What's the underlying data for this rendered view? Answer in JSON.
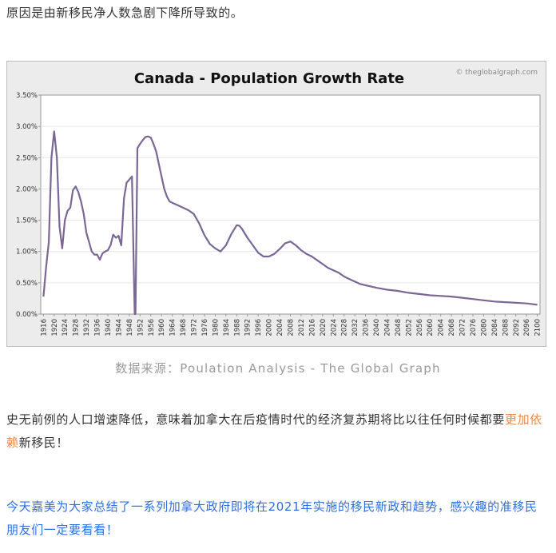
{
  "article": {
    "intro": "原因是由新移民净人数急剧下降所导致的。",
    "body_before": "史无前例的人口增速降低，意味着加拿大在后疫情时代的经济复苏期将比以往任何时候都要",
    "body_highlight": "更加依赖",
    "body_after": "新移民！",
    "cta": "今天嘉美为大家总结了一系列加拿大政府即将在2021年实施的移民新政和趋势，感兴趣的准移民朋友们一定要看看！",
    "caption": "数据来源：Poulation Analysis - The Global Graph"
  },
  "colors": {
    "line": "#7a6796",
    "highlight": "#e8894a",
    "cta": "#2e6fe0",
    "frame_bg": "#ececec",
    "plot_bg": "#ffffff"
  },
  "chart_data": {
    "type": "line",
    "title": "Canada - Population Growth Rate",
    "watermark": "© theglobalgraph.com",
    "xlabel": "",
    "ylabel": "",
    "xlim": [
      1915,
      2101
    ],
    "ylim": [
      0,
      3.5
    ],
    "y_ticks": [
      "0.00%",
      "0.50%",
      "1.00%",
      "1.50%",
      "2.00%",
      "2.50%",
      "3.00%",
      "3.50%"
    ],
    "x_ticks": [
      "1916",
      "1920",
      "1924",
      "1928",
      "1932",
      "1936",
      "1940",
      "1944",
      "1948",
      "1952",
      "1956",
      "1960",
      "1964",
      "1968",
      "1972",
      "1976",
      "1980",
      "1984",
      "1988",
      "1992",
      "1996",
      "2000",
      "2004",
      "2008",
      "2012",
      "2016",
      "2020",
      "2024",
      "2028",
      "2032",
      "2036",
      "2040",
      "2044",
      "2048",
      "2052",
      "2056",
      "2060",
      "2064",
      "2068",
      "2072",
      "2076",
      "2080",
      "2084",
      "2088",
      "2092",
      "2096",
      "2100"
    ],
    "grid": true,
    "series": [
      {
        "name": "Population Growth Rate (%)",
        "x": [
          1916,
          1917,
          1918,
          1919,
          1920,
          1921,
          1922,
          1923,
          1924,
          1925,
          1926,
          1927,
          1928,
          1929,
          1930,
          1931,
          1932,
          1933,
          1934,
          1935,
          1936,
          1937,
          1938,
          1939,
          1940,
          1941,
          1942,
          1943,
          1944,
          1945,
          1946,
          1947,
          1948,
          1949,
          1950,
          1950.3,
          1951,
          1952,
          1953,
          1954,
          1955,
          1956,
          1957,
          1958,
          1959,
          1960,
          1961,
          1962,
          1963,
          1964,
          1966,
          1968,
          1970,
          1972,
          1974,
          1976,
          1978,
          1980,
          1982,
          1984,
          1986,
          1988,
          1989,
          1990,
          1992,
          1994,
          1996,
          1998,
          2000,
          2002,
          2004,
          2006,
          2008,
          2010,
          2012,
          2014,
          2016,
          2018,
          2020,
          2022,
          2024,
          2026,
          2028,
          2030,
          2034,
          2040,
          2044,
          2048,
          2052,
          2056,
          2060,
          2064,
          2068,
          2072,
          2076,
          2080,
          2084,
          2088,
          2092,
          2096,
          2100
        ],
        "values": [
          0.28,
          0.75,
          1.15,
          2.5,
          2.92,
          2.5,
          1.4,
          1.05,
          1.5,
          1.65,
          1.7,
          1.98,
          2.04,
          1.95,
          1.8,
          1.6,
          1.3,
          1.15,
          1.0,
          0.95,
          0.95,
          0.87,
          0.97,
          1.0,
          1.02,
          1.1,
          1.27,
          1.22,
          1.25,
          1.1,
          1.85,
          2.1,
          2.15,
          2.2,
          0.0,
          0.0,
          2.65,
          2.72,
          2.78,
          2.83,
          2.84,
          2.82,
          2.72,
          2.6,
          2.4,
          2.2,
          2.0,
          1.88,
          1.8,
          1.78,
          1.74,
          1.7,
          1.66,
          1.6,
          1.45,
          1.26,
          1.12,
          1.05,
          1.0,
          1.1,
          1.28,
          1.42,
          1.41,
          1.36,
          1.22,
          1.1,
          0.98,
          0.92,
          0.92,
          0.96,
          1.04,
          1.13,
          1.16,
          1.1,
          1.02,
          0.96,
          0.92,
          0.86,
          0.8,
          0.74,
          0.7,
          0.66,
          0.6,
          0.56,
          0.48,
          0.42,
          0.39,
          0.37,
          0.34,
          0.32,
          0.3,
          0.29,
          0.28,
          0.26,
          0.24,
          0.22,
          0.2,
          0.19,
          0.18,
          0.17,
          0.15
        ]
      }
    ]
  }
}
